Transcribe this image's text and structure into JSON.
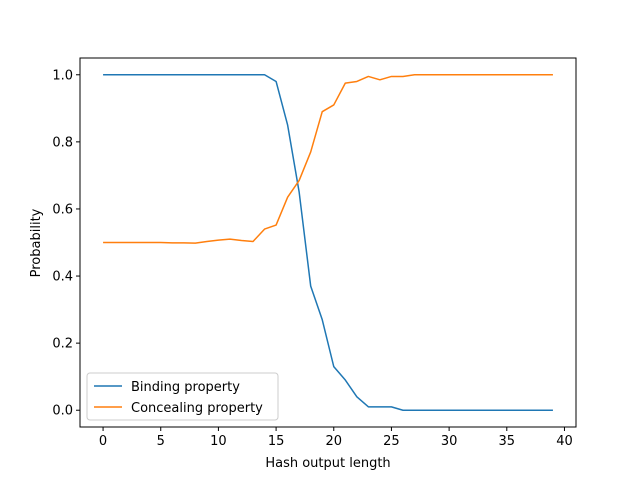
{
  "chart_data": {
    "type": "line",
    "title": "",
    "xlabel": "Hash output length",
    "ylabel": "Probability",
    "xlim": [
      -2,
      41
    ],
    "ylim": [
      -0.05,
      1.05
    ],
    "xticks": [
      0,
      5,
      10,
      15,
      20,
      25,
      30,
      35,
      40
    ],
    "yticks": [
      0.0,
      0.2,
      0.4,
      0.6,
      0.8,
      1.0
    ],
    "xtick_labels": [
      "0",
      "5",
      "10",
      "15",
      "20",
      "25",
      "30",
      "35",
      "40"
    ],
    "ytick_labels": [
      "0.0",
      "0.2",
      "0.4",
      "0.6",
      "0.8",
      "1.0"
    ],
    "x": [
      0,
      1,
      2,
      3,
      4,
      5,
      6,
      7,
      8,
      9,
      10,
      11,
      12,
      13,
      14,
      15,
      16,
      17,
      18,
      19,
      20,
      21,
      22,
      23,
      24,
      25,
      26,
      27,
      28,
      29,
      30,
      31,
      32,
      33,
      34,
      35,
      36,
      37,
      38,
      39
    ],
    "series": [
      {
        "name": "Binding property",
        "color": "#1f77b4",
        "values": [
          1.0,
          1.0,
          1.0,
          1.0,
          1.0,
          1.0,
          1.0,
          1.0,
          1.0,
          1.0,
          1.0,
          1.0,
          1.0,
          1.0,
          1.0,
          0.98,
          0.85,
          0.65,
          0.37,
          0.27,
          0.13,
          0.09,
          0.04,
          0.01,
          0.01,
          0.01,
          0.0,
          0.0,
          0.0,
          0.0,
          0.0,
          0.0,
          0.0,
          0.0,
          0.0,
          0.0,
          0.0,
          0.0,
          0.0,
          0.0
        ]
      },
      {
        "name": "Concealing property",
        "color": "#ff7f0e",
        "values": [
          0.5,
          0.5,
          0.5,
          0.5,
          0.5,
          0.5,
          0.499,
          0.499,
          0.498,
          0.503,
          0.507,
          0.51,
          0.506,
          0.503,
          0.54,
          0.552,
          0.635,
          0.685,
          0.77,
          0.89,
          0.91,
          0.975,
          0.98,
          0.995,
          0.985,
          0.995,
          0.995,
          1.0,
          1.0,
          1.0,
          1.0,
          1.0,
          1.0,
          1.0,
          1.0,
          1.0,
          1.0,
          1.0,
          1.0,
          1.0
        ]
      }
    ],
    "legend_position": "lower-left"
  }
}
